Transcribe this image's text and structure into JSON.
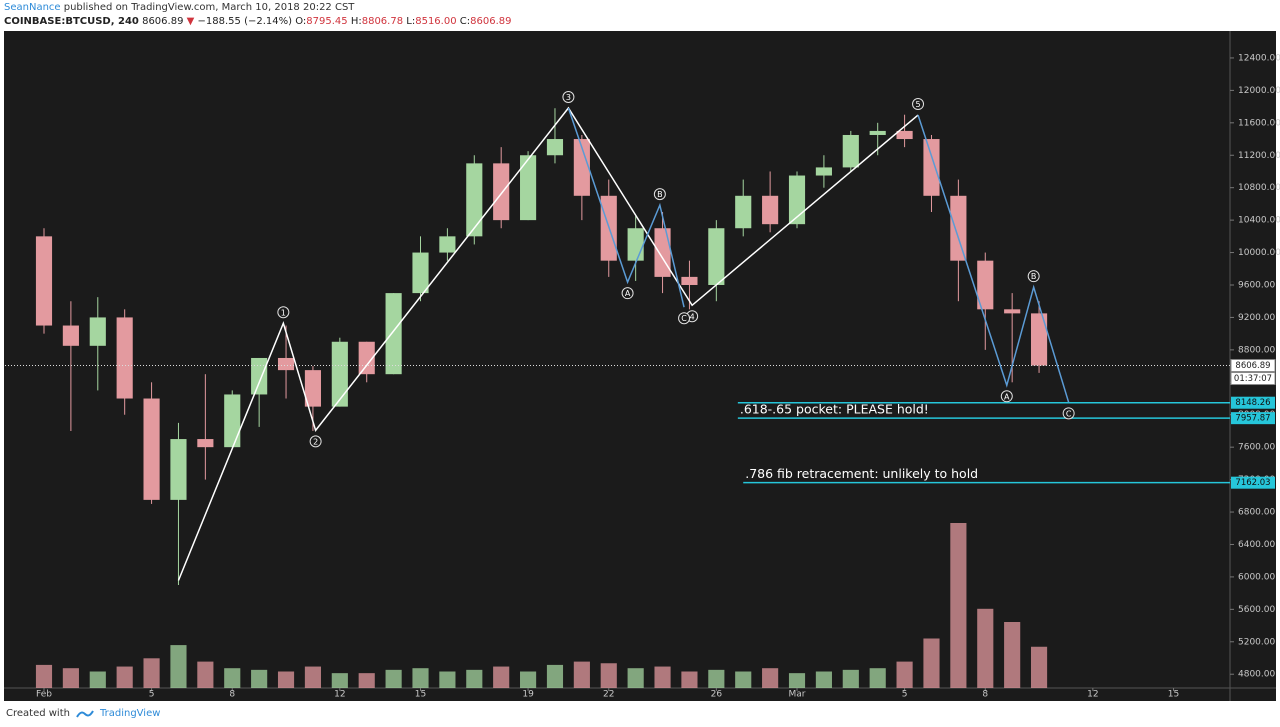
{
  "header": {
    "author": "SeanNance",
    "published": "published on TradingView.com, March 10, 2018 20:22 CST",
    "symbol": "COINBASE:BTCUSD, 240",
    "last": "8606.89",
    "arrow": "▼",
    "change": "−188.55 (−2.14%)",
    "ohlc": [
      {
        "key": "O:",
        "value": "8795.45"
      },
      {
        "key": "H:",
        "value": "8806.78"
      },
      {
        "key": "L:",
        "value": "8516.00"
      },
      {
        "key": "C:",
        "value": "8606.89"
      }
    ]
  },
  "footer": {
    "created": "Created with",
    "brand": "TradingView"
  },
  "chart_data": {
    "type": "candlestick",
    "x": [
      0,
      1,
      2,
      3,
      4,
      5,
      6,
      7,
      8,
      9,
      10,
      11,
      12,
      13,
      14,
      15,
      16,
      17,
      18,
      19,
      20,
      21,
      22,
      23,
      24,
      25,
      26,
      27,
      28,
      29,
      30,
      31,
      32,
      33,
      34,
      35,
      36,
      37
    ],
    "ohlc": [
      [
        10200,
        10300,
        9000,
        9100
      ],
      [
        9100,
        9400,
        7800,
        8850
      ],
      [
        8850,
        9450,
        8300,
        9200
      ],
      [
        9200,
        9300,
        8000,
        8200
      ],
      [
        8200,
        8400,
        6900,
        6950
      ],
      [
        6950,
        7900,
        5900,
        7700
      ],
      [
        7700,
        8500,
        7200,
        7600
      ],
      [
        7600,
        8300,
        7600,
        8250
      ],
      [
        8250,
        8700,
        7850,
        8700
      ],
      [
        8700,
        9100,
        8200,
        8550
      ],
      [
        8550,
        8600,
        7800,
        8100
      ],
      [
        8100,
        8950,
        8100,
        8900
      ],
      [
        8900,
        8900,
        8400,
        8500
      ],
      [
        8500,
        9500,
        8500,
        9500
      ],
      [
        9500,
        10200,
        9400,
        10000
      ],
      [
        10000,
        10300,
        9900,
        10200
      ],
      [
        10200,
        11200,
        10100,
        11100
      ],
      [
        11100,
        11300,
        10300,
        10400
      ],
      [
        10400,
        11250,
        10400,
        11200
      ],
      [
        11200,
        11780,
        11100,
        11400
      ],
      [
        11400,
        11450,
        10400,
        10700
      ],
      [
        10700,
        10900,
        9700,
        9900
      ],
      [
        9900,
        10450,
        9650,
        10300
      ],
      [
        10300,
        10500,
        9500,
        9700
      ],
      [
        9700,
        9900,
        9300,
        9600
      ],
      [
        9600,
        10400,
        9400,
        10300
      ],
      [
        10300,
        10900,
        10200,
        10700
      ],
      [
        10700,
        11000,
        10250,
        10350
      ],
      [
        10350,
        11000,
        10300,
        10950
      ],
      [
        10950,
        11200,
        10800,
        11050
      ],
      [
        11050,
        11500,
        11000,
        11450
      ],
      [
        11450,
        11600,
        11200,
        11500
      ],
      [
        11500,
        11700,
        11300,
        11400
      ],
      [
        11400,
        11450,
        10500,
        10700
      ],
      [
        10700,
        10900,
        9400,
        9900
      ],
      [
        9900,
        10000,
        8800,
        9300
      ],
      [
        9300,
        9500,
        8400,
        9250
      ],
      [
        9250,
        9400,
        8516,
        8607
      ]
    ],
    "volume": [
      14,
      12,
      10,
      13,
      18,
      26,
      16,
      12,
      11,
      10,
      13,
      9,
      9,
      11,
      12,
      10,
      11,
      13,
      10,
      14,
      16,
      15,
      12,
      13,
      10,
      11,
      10,
      12,
      9,
      10,
      11,
      12,
      16,
      30,
      100,
      48,
      40,
      25
    ],
    "up_color": "#a5d6a0",
    "down_color": "#e39a9f",
    "xlim": [
      -1.45,
      44.1
    ],
    "xticks": [
      {
        "value": 0,
        "label": "Feb"
      },
      {
        "value": 4,
        "label": "5"
      },
      {
        "value": 7,
        "label": "8"
      },
      {
        "value": 11,
        "label": "12"
      },
      {
        "value": 14,
        "label": "15"
      },
      {
        "value": 18,
        "label": "19"
      },
      {
        "value": 21,
        "label": "22"
      },
      {
        "value": 25,
        "label": "26"
      },
      {
        "value": 28,
        "label": "Mar"
      },
      {
        "value": 32,
        "label": "5"
      },
      {
        "value": 35,
        "label": "8"
      },
      {
        "value": 39,
        "label": "12"
      },
      {
        "value": 42,
        "label": "15"
      }
    ],
    "ylim": [
      4630,
      12720
    ],
    "yticks": [
      {
        "value": 4800,
        "label": "4800.00"
      },
      {
        "value": 5200,
        "label": "5200.00"
      },
      {
        "value": 5600,
        "label": "5600.00"
      },
      {
        "value": 6000,
        "label": "6000.00"
      },
      {
        "value": 6400,
        "label": "6400.00"
      },
      {
        "value": 6800,
        "label": "6800.00"
      },
      {
        "value": 7200,
        "label": "7200.00"
      },
      {
        "value": 7600,
        "label": "7600.00"
      },
      {
        "value": 8000,
        "label": "8000.00"
      },
      {
        "value": 8400,
        "label": "8400.00"
      },
      {
        "value": 8800,
        "label": "8800.00"
      },
      {
        "value": 9200,
        "label": "9200.00"
      },
      {
        "value": 9600,
        "label": "9600.00"
      },
      {
        "value": 10000,
        "label": "10000.00"
      },
      {
        "value": 10400,
        "label": "10400.00"
      },
      {
        "value": 10800,
        "label": "10800.00"
      },
      {
        "value": 11200,
        "label": "11200.00"
      },
      {
        "value": 11600,
        "label": "11600.00"
      },
      {
        "value": 12000,
        "label": "12000.00"
      },
      {
        "value": 12400,
        "label": "12400.00"
      }
    ],
    "grid": false,
    "last_price": 8606.89,
    "countdown": "01:37:07",
    "waves": [
      {
        "color": "#ffffff",
        "points": [
          {
            "label": null,
            "x": 5.0,
            "y": 5956
          },
          {
            "label": "1",
            "x": 8.9,
            "y": 9128
          },
          {
            "label": "2",
            "x": 10.1,
            "y": 7807
          },
          {
            "label": "3",
            "x": 19.5,
            "y": 11783
          },
          {
            "label": "4",
            "x": 24.1,
            "y": 9350
          },
          {
            "label": "5",
            "x": 32.5,
            "y": 11696
          }
        ]
      },
      {
        "color": "#5b9bd5",
        "points": [
          {
            "label": null,
            "x": 19.5,
            "y": 11783
          },
          {
            "label": "A",
            "x": 21.7,
            "y": 9635
          },
          {
            "label": "B",
            "x": 22.9,
            "y": 10585
          },
          {
            "label": "C",
            "x": 23.8,
            "y": 9326
          }
        ]
      },
      {
        "color": "#5b9bd5",
        "points": [
          {
            "label": null,
            "x": 32.5,
            "y": 11696
          },
          {
            "label": "A",
            "x": 35.8,
            "y": 8363
          },
          {
            "label": "B",
            "x": 36.8,
            "y": 9573
          },
          {
            "label": "C",
            "x": 38.1,
            "y": 8153
          }
        ]
      }
    ],
    "levels": [
      {
        "value": 8148.26,
        "start": 25.8,
        "note": null
      },
      {
        "value": 7957.87,
        "start": 25.8,
        "note": ".618-.65 pocket: PLEASE hold!"
      },
      {
        "value": 7162.03,
        "start": 26.0,
        "note": ".786 fib retracement: unlikely to hold"
      }
    ],
    "level_color": "#26c6da"
  }
}
